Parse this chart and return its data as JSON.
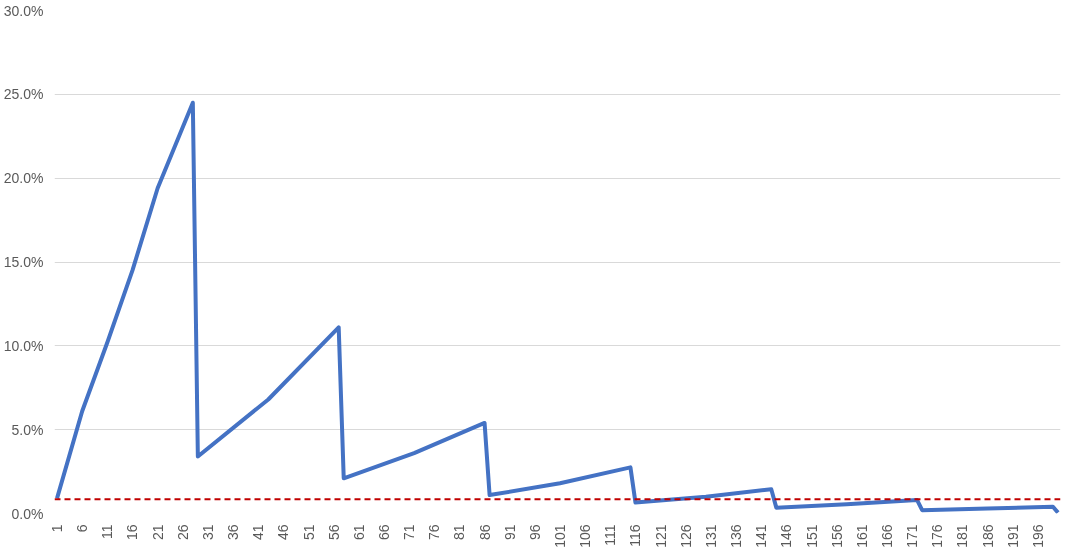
{
  "chart_data": {
    "type": "line",
    "x": [
      1,
      6,
      11,
      16,
      21,
      28,
      29,
      43,
      57,
      58,
      72,
      86,
      87,
      101,
      115,
      116,
      130,
      143,
      144,
      158,
      172,
      173,
      186,
      199,
      200
    ],
    "series": [
      {
        "color": "#4472c4",
        "values": [
          0.9,
          6.1,
          10.2,
          14.5,
          19.4,
          24.5,
          3.4,
          6.8,
          11.1,
          2.1,
          3.6,
          5.4,
          1.1,
          1.8,
          2.75,
          0.65,
          1.0,
          1.45,
          0.35,
          0.55,
          0.8,
          0.2,
          0.3,
          0.4,
          0.05
        ]
      }
    ],
    "xlim": [
      0.5,
      200.5
    ],
    "xticks": [
      1,
      6,
      11,
      16,
      21,
      26,
      31,
      36,
      41,
      46,
      51,
      56,
      61,
      66,
      71,
      76,
      81,
      86,
      91,
      96,
      101,
      106,
      111,
      116,
      121,
      126,
      131,
      136,
      141,
      146,
      151,
      156,
      161,
      166,
      171,
      176,
      181,
      186,
      191,
      196
    ],
    "ylim": [
      0,
      30
    ],
    "yticks": [
      {
        "value": 0,
        "label": "0.0%"
      },
      {
        "value": 5,
        "label": "5.0%"
      },
      {
        "value": 10,
        "label": "10.0%"
      },
      {
        "value": 15,
        "label": "15.0%"
      },
      {
        "value": 20,
        "label": "20.0%"
      },
      {
        "value": 25,
        "label": "25.0%"
      },
      {
        "value": 30,
        "label": "30.0%"
      }
    ],
    "grid": "y",
    "line_style": "solid",
    "ref_lines": [
      {
        "axis": "y",
        "value": 0.85,
        "color": "#c00000",
        "line_style": "dashed"
      }
    ]
  }
}
